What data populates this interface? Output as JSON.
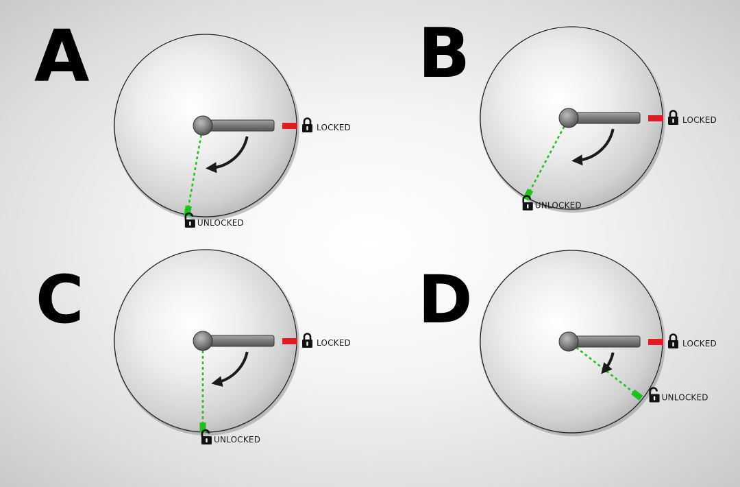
{
  "panels": [
    {
      "id": "A",
      "letter": "A",
      "locked_label": "LOCKED",
      "unlocked_label": "UNLOCKED",
      "unlocked_angle_deg": 100,
      "unlocked_label_side": "below"
    },
    {
      "id": "B",
      "letter": "B",
      "locked_label": "LOCKED",
      "unlocked_label": "UNLOCKED",
      "unlocked_angle_deg": 118,
      "unlocked_label_side": "below"
    },
    {
      "id": "C",
      "letter": "C",
      "locked_label": "LOCKED",
      "unlocked_label": "UNLOCKED",
      "unlocked_angle_deg": 90,
      "unlocked_label_side": "below"
    },
    {
      "id": "D",
      "letter": "D",
      "locked_label": "LOCKED",
      "unlocked_label": "UNLOCKED",
      "unlocked_angle_deg": 38,
      "unlocked_label_side": "right"
    }
  ],
  "colors": {
    "locked_marker": "#e11b22",
    "unlocked_marker": "#1ec11e",
    "handle": "#7a7a7a",
    "arrow": "#1a1a1a"
  },
  "icons": {
    "locked": "padlock-closed-icon",
    "unlocked": "padlock-open-icon"
  }
}
